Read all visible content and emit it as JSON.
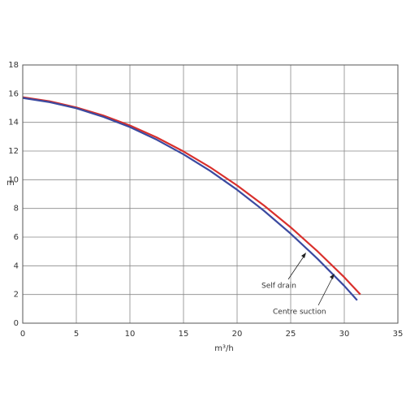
{
  "chart_data": {
    "type": "line",
    "y_label": "m",
    "x_label": "m³/h",
    "xlim": [
      0,
      35
    ],
    "ylim": [
      0,
      18
    ],
    "xticks": [
      0,
      5,
      10,
      15,
      20,
      25,
      30,
      35
    ],
    "yticks": [
      0,
      2,
      4,
      6,
      8,
      10,
      12,
      14,
      16,
      18
    ],
    "grid": true,
    "series": [
      {
        "name": "Self drain",
        "color": "#d9302c",
        "x": [
          0,
          2.5,
          5,
          7.5,
          10,
          12.5,
          15,
          17.5,
          20,
          22.5,
          25,
          27.5,
          30,
          31.5
        ],
        "values": [
          15.75,
          15.47,
          15.04,
          14.48,
          13.78,
          12.95,
          11.97,
          10.86,
          9.6,
          8.21,
          6.68,
          5.01,
          3.2,
          2.0
        ]
      },
      {
        "name": "Centre suction",
        "color": "#3b4aa0",
        "x": [
          0,
          2.5,
          5,
          7.5,
          10,
          12.5,
          15,
          17.5,
          20,
          22.5,
          25,
          27.5,
          30,
          31.2
        ],
        "values": [
          15.7,
          15.41,
          14.98,
          14.39,
          13.67,
          12.79,
          11.77,
          10.61,
          9.3,
          7.84,
          6.24,
          4.49,
          2.6,
          1.6
        ]
      }
    ]
  }
}
